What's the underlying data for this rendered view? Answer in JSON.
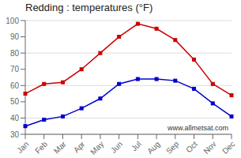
{
  "chart_data": {
    "type": "line",
    "title": "Redding : temperatures (°F)",
    "categories": [
      "Jan",
      "Feb",
      "Mar",
      "Apr",
      "May",
      "Jun",
      "Jul",
      "Aug",
      "Sep",
      "Oct",
      "Nov",
      "Dec"
    ],
    "series": [
      {
        "color": "#cc0000",
        "values": [
          55,
          61,
          62,
          70,
          80,
          90,
          98,
          95,
          88,
          76,
          61,
          54
        ]
      },
      {
        "color": "#0000cc",
        "values": [
          35,
          39,
          41,
          46,
          52,
          61,
          64,
          64,
          63,
          58,
          49,
          41
        ]
      }
    ],
    "ylim": [
      30,
      100
    ],
    "yticks": [
      30,
      40,
      50,
      60,
      70,
      80,
      90,
      100
    ],
    "grid": true,
    "marker": "square",
    "line_style": "solid",
    "annotations": [
      "www.allmetsat.com"
    ]
  }
}
